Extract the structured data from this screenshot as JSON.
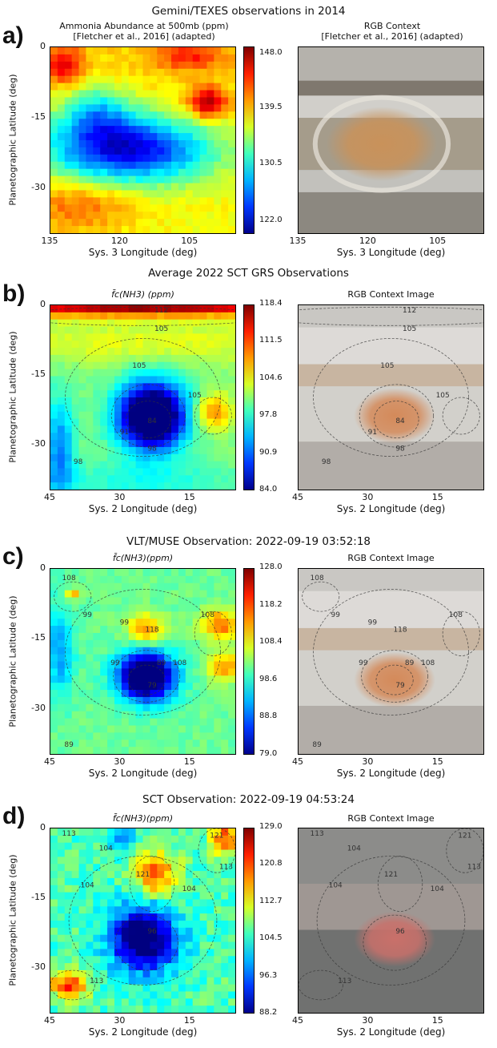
{
  "panels": [
    {
      "letter": "a)",
      "section_title": "Gemini/TEXES observations in 2014",
      "left_title_line1": "Ammonia Abundance at 500mb (ppm)",
      "left_title_line2": "[Fletcher et al., 2016] (adapted)",
      "right_title_line1": "RGB Context",
      "right_title_line2": "[Fletcher et al., 2016] (adapted)",
      "ylabel": "Planetographic Latitude (deg)",
      "xlabel": "Sys. 3 Longitude (deg)",
      "yticks": [
        "0",
        "-15",
        "-30"
      ],
      "xticks": [
        "135",
        "120",
        "105"
      ],
      "colorbar_ticks": [
        "148.0",
        "139.5",
        "130.5",
        "122.0"
      ]
    },
    {
      "letter": "b)",
      "section_title": "Average 2022 SCT GRS Observations",
      "left_title": "f̄c(NH3) (ppm)",
      "right_title": "RGB Context Image",
      "ylabel": "Planetographic Latitude (deg)",
      "xlabel": "Sys. 2 Longitude (deg)",
      "yticks": [
        "0",
        "-15",
        "-30"
      ],
      "xticks": [
        "45",
        "30",
        "15"
      ],
      "colorbar_ticks": [
        "118.4",
        "111.5",
        "104.6",
        "97.8",
        "90.9",
        "84.0"
      ],
      "contour_labels": [
        "112",
        "105",
        "105",
        "105",
        "91",
        "84",
        "98",
        "98"
      ]
    },
    {
      "letter": "c)",
      "section_title": "VLT/MUSE Observation: 2022-09-19 03:52:18",
      "left_title": "f̄c(NH3)(ppm)",
      "right_title": "RGB Context Image",
      "ylabel": "Planetographic Latitude (deg)",
      "xlabel": "Sys. 2 Longitude (deg)",
      "yticks": [
        "0",
        "-15",
        "-30"
      ],
      "xticks": [
        "45",
        "30",
        "15"
      ],
      "colorbar_ticks": [
        "128.0",
        "118.2",
        "108.4",
        "98.6",
        "88.8",
        "79.0"
      ],
      "contour_labels": [
        "108",
        "99",
        "118",
        "99",
        "108",
        "99",
        "108",
        "89",
        "89",
        "79"
      ]
    },
    {
      "letter": "d)",
      "section_title": "SCT Observation: 2022-09-19 04:53:24",
      "left_title": "f̄c(NH3)(ppm)",
      "right_title": "RGB Context Image",
      "ylabel": "Planetographic Latitude (deg)",
      "xlabel": "Sys. 2 Longitude (deg)",
      "yticks": [
        "0",
        "-15",
        "-30"
      ],
      "xticks": [
        "45",
        "30",
        "15"
      ],
      "colorbar_ticks": [
        "129.0",
        "120.8",
        "112.7",
        "104.5",
        "96.3",
        "88.2"
      ],
      "contour_labels": [
        "113",
        "104",
        "121",
        "104",
        "104",
        "96",
        "113",
        "121",
        "113"
      ]
    }
  ],
  "chart_data": [
    {
      "type": "heatmap",
      "title": "Ammonia Abundance at 500mb (ppm)",
      "xlabel": "Sys. 3 Longitude (deg)",
      "ylabel": "Planetographic Latitude (deg)",
      "xlim": [
        135,
        93
      ],
      "ylim": [
        -40,
        0
      ],
      "color_range": [
        122.0,
        148.0
      ],
      "colorscale": "jet"
    },
    {
      "type": "heatmap",
      "title": "f̄c(NH3) (ppm)",
      "xlabel": "Sys. 2 Longitude (deg)",
      "ylabel": "Planetographic Latitude (deg)",
      "xlim": [
        45,
        5
      ],
      "ylim": [
        -40,
        0
      ],
      "color_range": [
        84.0,
        118.4
      ],
      "colorscale": "jet",
      "contour_levels": [
        84,
        91,
        98,
        105,
        112
      ]
    },
    {
      "type": "heatmap",
      "title": "f̄c(NH3)(ppm)",
      "xlabel": "Sys. 2 Longitude (deg)",
      "ylabel": "Planetographic Latitude (deg)",
      "xlim": [
        45,
        5
      ],
      "ylim": [
        -40,
        0
      ],
      "color_range": [
        79.0,
        128.0
      ],
      "colorscale": "jet",
      "contour_levels": [
        79,
        89,
        99,
        108,
        118
      ]
    },
    {
      "type": "heatmap",
      "title": "f̄c(NH3)(ppm)",
      "xlabel": "Sys. 2 Longitude (deg)",
      "ylabel": "Planetographic Latitude (deg)",
      "xlim": [
        45,
        5
      ],
      "ylim": [
        -40,
        0
      ],
      "color_range": [
        88.2,
        129.0
      ],
      "colorscale": "jet",
      "contour_levels": [
        96,
        104,
        113,
        121
      ]
    }
  ]
}
